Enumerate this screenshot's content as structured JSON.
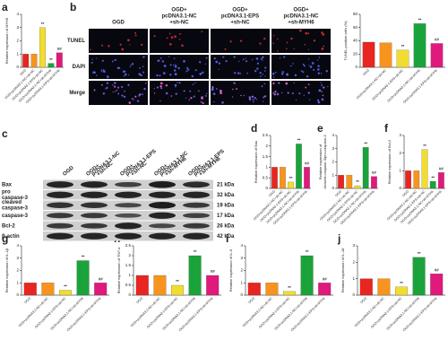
{
  "chart_data": [
    {
      "type": "bar",
      "label": "a",
      "ylabel": "Relative expression of MYH6",
      "categories": [
        "OGD",
        "OGD+pcDNA3.1-NC+sh-NC",
        "OGD+pcDNA3.1-EPS+sh-NC",
        "OGD+pcDNA3.1-NC+sh-MYH6",
        "OGD+pcDNA3.1-EPS+sh-MYH6"
      ],
      "values": [
        1,
        1,
        3,
        0.3,
        1.1
      ],
      "annotations": [
        null,
        null,
        "**",
        "**",
        "##"
      ],
      "colors": [
        "#e8251f",
        "#f7941d",
        "#f2dc2e",
        "#1aa33b",
        "#e0197d"
      ],
      "ylim": [
        0,
        4
      ],
      "yticks": [
        0,
        1,
        2,
        3,
        4
      ]
    },
    {
      "type": "bar",
      "label": null,
      "ylabel": "TUNEL positive cells (%)",
      "categories": [
        "OGD",
        "OGD+pcDNA3.1-NC+sh-NC",
        "OGD+pcDNA3.1-EPS+sh-NC",
        "OGD+pcDNA3.1-NC+sh-MYH6",
        "OGD+pcDNA3.1-EPS+sh-MYH6"
      ],
      "values": [
        38,
        37,
        26,
        66,
        36
      ],
      "annotations": [
        null,
        null,
        "**",
        "**",
        "##"
      ],
      "colors": [
        "#e8251f",
        "#f7941d",
        "#f2dc2e",
        "#1aa33b",
        "#e0197d"
      ],
      "ylim": [
        0,
        80
      ],
      "yticks": [
        0,
        20,
        40,
        60,
        80
      ]
    },
    {
      "type": "bar",
      "label": "d",
      "ylabel": "Relative expression of Bax",
      "categories": [
        "OGD",
        "OGD+pcDNA3.1-NC+sh-NC",
        "OGD+pcDNA3.1-EPS+sh-NC",
        "OGD+pcDNA3.1-NC+sh-MYH6",
        "OGD+pcDNA3.1-EPS+sh-MYH6"
      ],
      "values": [
        1,
        1,
        0.3,
        2.1,
        1
      ],
      "annotations": [
        null,
        null,
        "**",
        "**",
        "##"
      ],
      "colors": [
        "#e8251f",
        "#f7941d",
        "#f2dc2e",
        "#1aa33b",
        "#e0197d"
      ],
      "ylim": [
        0,
        2.5
      ],
      "yticks": [
        0,
        0.5,
        1,
        1.5,
        2,
        2.5
      ]
    },
    {
      "type": "bar",
      "label": "e",
      "ylabel": [
        "Relative expression of",
        "cleaved-caspase-3/pro-caspase-3"
      ],
      "categories": [
        "OGD",
        "OGD+pcDNA3.1-NC+sh-NC",
        "OGD+pcDNA3.1-EPS+sh-NC",
        "OGD+pcDNA3.1-NC+sh-MYH6",
        "OGD+pcDNA3.1-EPS+sh-MYH6"
      ],
      "values": [
        1,
        1,
        0.2,
        3.1,
        0.9
      ],
      "annotations": [
        null,
        null,
        "**",
        "**",
        "##"
      ],
      "colors": [
        "#e8251f",
        "#f7941d",
        "#f2dc2e",
        "#1aa33b",
        "#e0197d"
      ],
      "ylim": [
        0,
        4
      ],
      "yticks": [
        0,
        1,
        2,
        3,
        4
      ]
    },
    {
      "type": "bar",
      "label": "f",
      "ylabel": "Relative expression of Bcl-2",
      "categories": [
        "OGD",
        "OGD+pcDNA3.1-NC+sh-NC",
        "OGD+pcDNA3.1-EPS+sh-NC",
        "OGD+pcDNA3.1-NC+sh-MYH6",
        "OGD+pcDNA3.1-EPS+sh-MYH6"
      ],
      "values": [
        1,
        1,
        2.2,
        0.4,
        0.9
      ],
      "annotations": [
        null,
        null,
        "**",
        "**",
        "##"
      ],
      "colors": [
        "#e8251f",
        "#f7941d",
        "#f2dc2e",
        "#1aa33b",
        "#e0197d"
      ],
      "ylim": [
        0,
        3
      ],
      "yticks": [
        0,
        1,
        2,
        3
      ]
    },
    {
      "type": "bar",
      "label": "g",
      "ylabel": "Relative expression of IL-1β",
      "categories": [
        "OGD",
        "OGD+pcDNA3.1-NC+sh-NC",
        "OGD+pcDNA3.1-EPS+sh-NC",
        "OGD+pcDNA3.1-NC+sh-MYH6",
        "OGD+pcDNA3.1-EPS+sh-MYH6"
      ],
      "values": [
        1,
        1,
        0.4,
        2.8,
        1
      ],
      "annotations": [
        null,
        null,
        "**",
        "**",
        "##"
      ],
      "colors": [
        "#e8251f",
        "#f7941d",
        "#f2dc2e",
        "#1aa33b",
        "#e0197d"
      ],
      "ylim": [
        0,
        4
      ],
      "yticks": [
        0,
        1,
        2,
        3,
        4
      ]
    },
    {
      "type": "bar",
      "label": "h",
      "ylabel": "Relative expression of TNF-α",
      "categories": [
        "OGD",
        "OGD+pcDNA3.1-NC+sh-NC",
        "OGD+pcDNA3.1-EPS+sh-NC",
        "OGD+pcDNA3.1-NC+sh-MYH6",
        "OGD+pcDNA3.1-EPS+sh-MYH6"
      ],
      "values": [
        1,
        1,
        0.5,
        2,
        1
      ],
      "annotations": [
        null,
        null,
        "**",
        "**",
        "##"
      ],
      "colors": [
        "#e8251f",
        "#f7941d",
        "#f2dc2e",
        "#1aa33b",
        "#e0197d"
      ],
      "ylim": [
        0,
        2.5
      ],
      "yticks": [
        0,
        0.5,
        1,
        1.5,
        2,
        2.5
      ]
    },
    {
      "type": "bar",
      "label": "i",
      "ylabel": "Relative expression of IL-6",
      "categories": [
        "OGD",
        "OGD+pcDNA3.1-NC+sh-NC",
        "OGD+pcDNA3.1-EPS+sh-NC",
        "OGD+pcDNA3.1-NC+sh-MYH6",
        "OGD+pcDNA3.1-EPS+sh-MYH6"
      ],
      "values": [
        1,
        1,
        0.3,
        3.2,
        1
      ],
      "annotations": [
        null,
        null,
        "**",
        "**",
        "##"
      ],
      "colors": [
        "#e8251f",
        "#f7941d",
        "#f2dc2e",
        "#1aa33b",
        "#e0197d"
      ],
      "ylim": [
        0,
        4
      ],
      "yticks": [
        0,
        1,
        2,
        3,
        4
      ]
    },
    {
      "type": "bar",
      "label": "j",
      "ylabel": "Relative expression of IL-18",
      "categories": [
        "OGD",
        "OGD+pcDNA3.1-NC+sh-NC",
        "OGD+pcDNA3.1-EPS+sh-NC",
        "OGD+pcDNA3.1-NC+sh-MYH6",
        "OGD+pcDNA3.1-EPS+sh-MYH6"
      ],
      "values": [
        1,
        1,
        0.5,
        2.3,
        1.3
      ],
      "annotations": [
        null,
        null,
        "**",
        "**",
        "##"
      ],
      "colors": [
        "#e8251f",
        "#f7941d",
        "#f2dc2e",
        "#1aa33b",
        "#e0197d"
      ],
      "ylim": [
        0,
        3
      ],
      "yticks": [
        0,
        1,
        2,
        3
      ]
    }
  ],
  "image_grid": {
    "label": "b",
    "columns": [
      [
        "OGD"
      ],
      [
        "OGD+",
        "pcDNA3.1-NC",
        "+sh-NC"
      ],
      [
        "OGD+",
        "pcDNA3.1-EPS",
        "+sh-NC"
      ],
      [
        "OGD+",
        "pcDNA3.1-NC",
        "+sh-MYH6"
      ]
    ],
    "rows": [
      "TUNEL",
      "DAPI",
      "Merge"
    ]
  },
  "blot": {
    "label": "c",
    "lanes": [
      [
        "OGD"
      ],
      [
        "OGD+",
        "pcDNA3.1-NC",
        "+sh-NC"
      ],
      [
        "OGD+",
        "pcDNA3.1-EPS",
        "+sh-NC"
      ],
      [
        "OGD+",
        "pcDNA3.1-NC",
        "+sh-MYH6"
      ],
      [
        "OGD+",
        "pcDNA3.1-EPS",
        "+sh-MYH6"
      ]
    ],
    "bands": [
      {
        "name": [
          "Bax"
        ],
        "size": "21 kDa"
      },
      {
        "name": [
          "pro",
          "caspase-3"
        ],
        "size": "32 kDa"
      },
      {
        "name": [
          "cleaved",
          "caspase-3"
        ],
        "size": "19 kDa"
      },
      {
        "name": [
          "caspase-3"
        ],
        "size": "17 kDa"
      },
      {
        "name": [
          "Bcl-2"
        ],
        "size": "26 kDa"
      },
      {
        "name": [
          "β-actin"
        ],
        "size": "42 kDa"
      }
    ]
  }
}
